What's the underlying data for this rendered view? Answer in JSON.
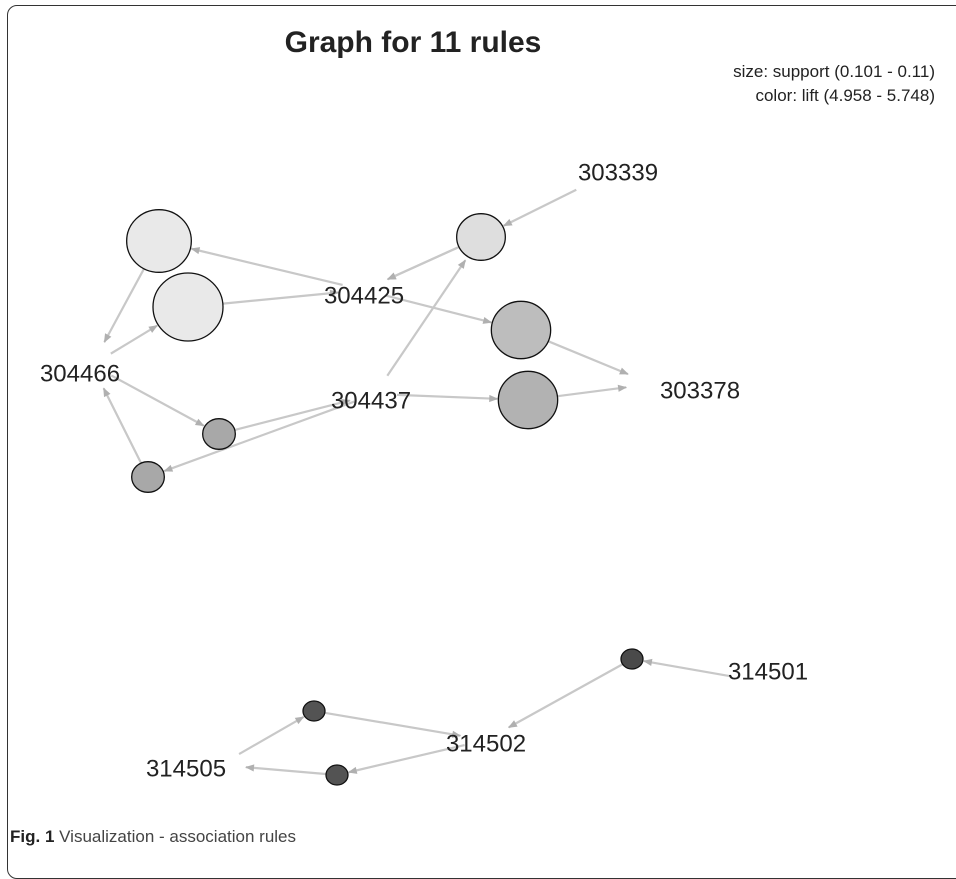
{
  "title": "Graph for 11 rules",
  "legend": {
    "size": "size: support (0.101 - 0.11)",
    "color": "color: lift (4.958 - 5.748)"
  },
  "caption": {
    "fig": "Fig. 1",
    "text": "Visualization - association rules"
  },
  "colors": {
    "edge": "#c8c8c8",
    "arrowhead": "#b2b2b2",
    "node_stroke": "#111111",
    "low_lift": "#e9e9e9",
    "high_lift": "#4a4a4a"
  },
  "chart_data": {
    "type": "network",
    "items": [
      "303339",
      "304425",
      "304466",
      "304437",
      "303378",
      "314501",
      "314505",
      "314502"
    ],
    "rules": [
      {
        "lhs": [
          "304466"
        ],
        "rhs": "304425",
        "support": 0.11,
        "lift": 4.96
      },
      {
        "lhs": [
          "304425"
        ],
        "rhs": "304466",
        "support": 0.109,
        "lift": 4.96
      },
      {
        "lhs": [
          "303339"
        ],
        "rhs": "304425",
        "support": 0.106,
        "lift": 5.0
      },
      {
        "lhs": [
          "304437"
        ],
        "rhs": "304425",
        "support": 0.107,
        "lift": 5.1
      },
      {
        "lhs": [
          "304425"
        ],
        "rhs": "303378",
        "support": 0.108,
        "lift": 5.15
      },
      {
        "lhs": [
          "304437"
        ],
        "rhs": "303378",
        "support": 0.108,
        "lift": 5.2
      },
      {
        "lhs": [
          "304466"
        ],
        "rhs": "304437",
        "support": 0.103,
        "lift": 5.25
      },
      {
        "lhs": [
          "304437"
        ],
        "rhs": "304466",
        "support": 0.103,
        "lift": 5.25
      },
      {
        "lhs": [
          "314505"
        ],
        "rhs": "314502",
        "support": 0.101,
        "lift": 5.7
      },
      {
        "lhs": [
          "314502"
        ],
        "rhs": "314505",
        "support": 0.101,
        "lift": 5.7
      },
      {
        "lhs": [
          "314501"
        ],
        "rhs": "314502",
        "support": 0.101,
        "lift": 5.748
      }
    ]
  }
}
